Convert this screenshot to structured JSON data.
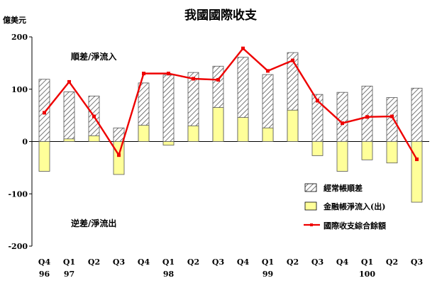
{
  "chart_data": {
    "type": "bar",
    "title": "我國國際收支",
    "unit_label": "億美元",
    "ylim": [
      -200,
      200
    ],
    "yticks": [
      200,
      100,
      0,
      -100,
      -200
    ],
    "categories": [
      "Q4",
      "Q1",
      "Q2",
      "Q3",
      "Q4",
      "Q1",
      "Q2",
      "Q3",
      "Q4",
      "Q1",
      "Q2",
      "Q3",
      "Q4",
      "Q1",
      "Q2",
      "Q3"
    ],
    "year_labels": [
      "96",
      "97",
      "",
      "",
      "",
      "98",
      "",
      "",
      "",
      "99",
      "",
      "",
      "",
      "100",
      "",
      ""
    ],
    "series": [
      {
        "name": "經常帳順差",
        "type": "bar",
        "pattern": "hatch",
        "values": [
          119,
          95,
          87,
          26,
          112,
          127,
          132,
          144,
          161,
          128,
          170,
          90,
          94,
          106,
          84,
          102
        ]
      },
      {
        "name": "金融帳淨流入(出)",
        "type": "bar",
        "color": "#ffff99",
        "values": [
          -57,
          5,
          11,
          -63,
          31,
          -7,
          30,
          65,
          46,
          26,
          60,
          -27,
          -57,
          -35,
          -41,
          -116
        ]
      },
      {
        "name": "國際收支綜合餘額",
        "type": "line",
        "color": "#ee0000",
        "values": [
          55,
          114,
          48,
          -26,
          130,
          130,
          120,
          118,
          178,
          135,
          155,
          78,
          35,
          47,
          48,
          -34
        ]
      }
    ],
    "legend_position": "bottom-right",
    "annotations": [
      {
        "text": "順差/淨流入"
      },
      {
        "text": "逆差/淨流出"
      }
    ]
  }
}
